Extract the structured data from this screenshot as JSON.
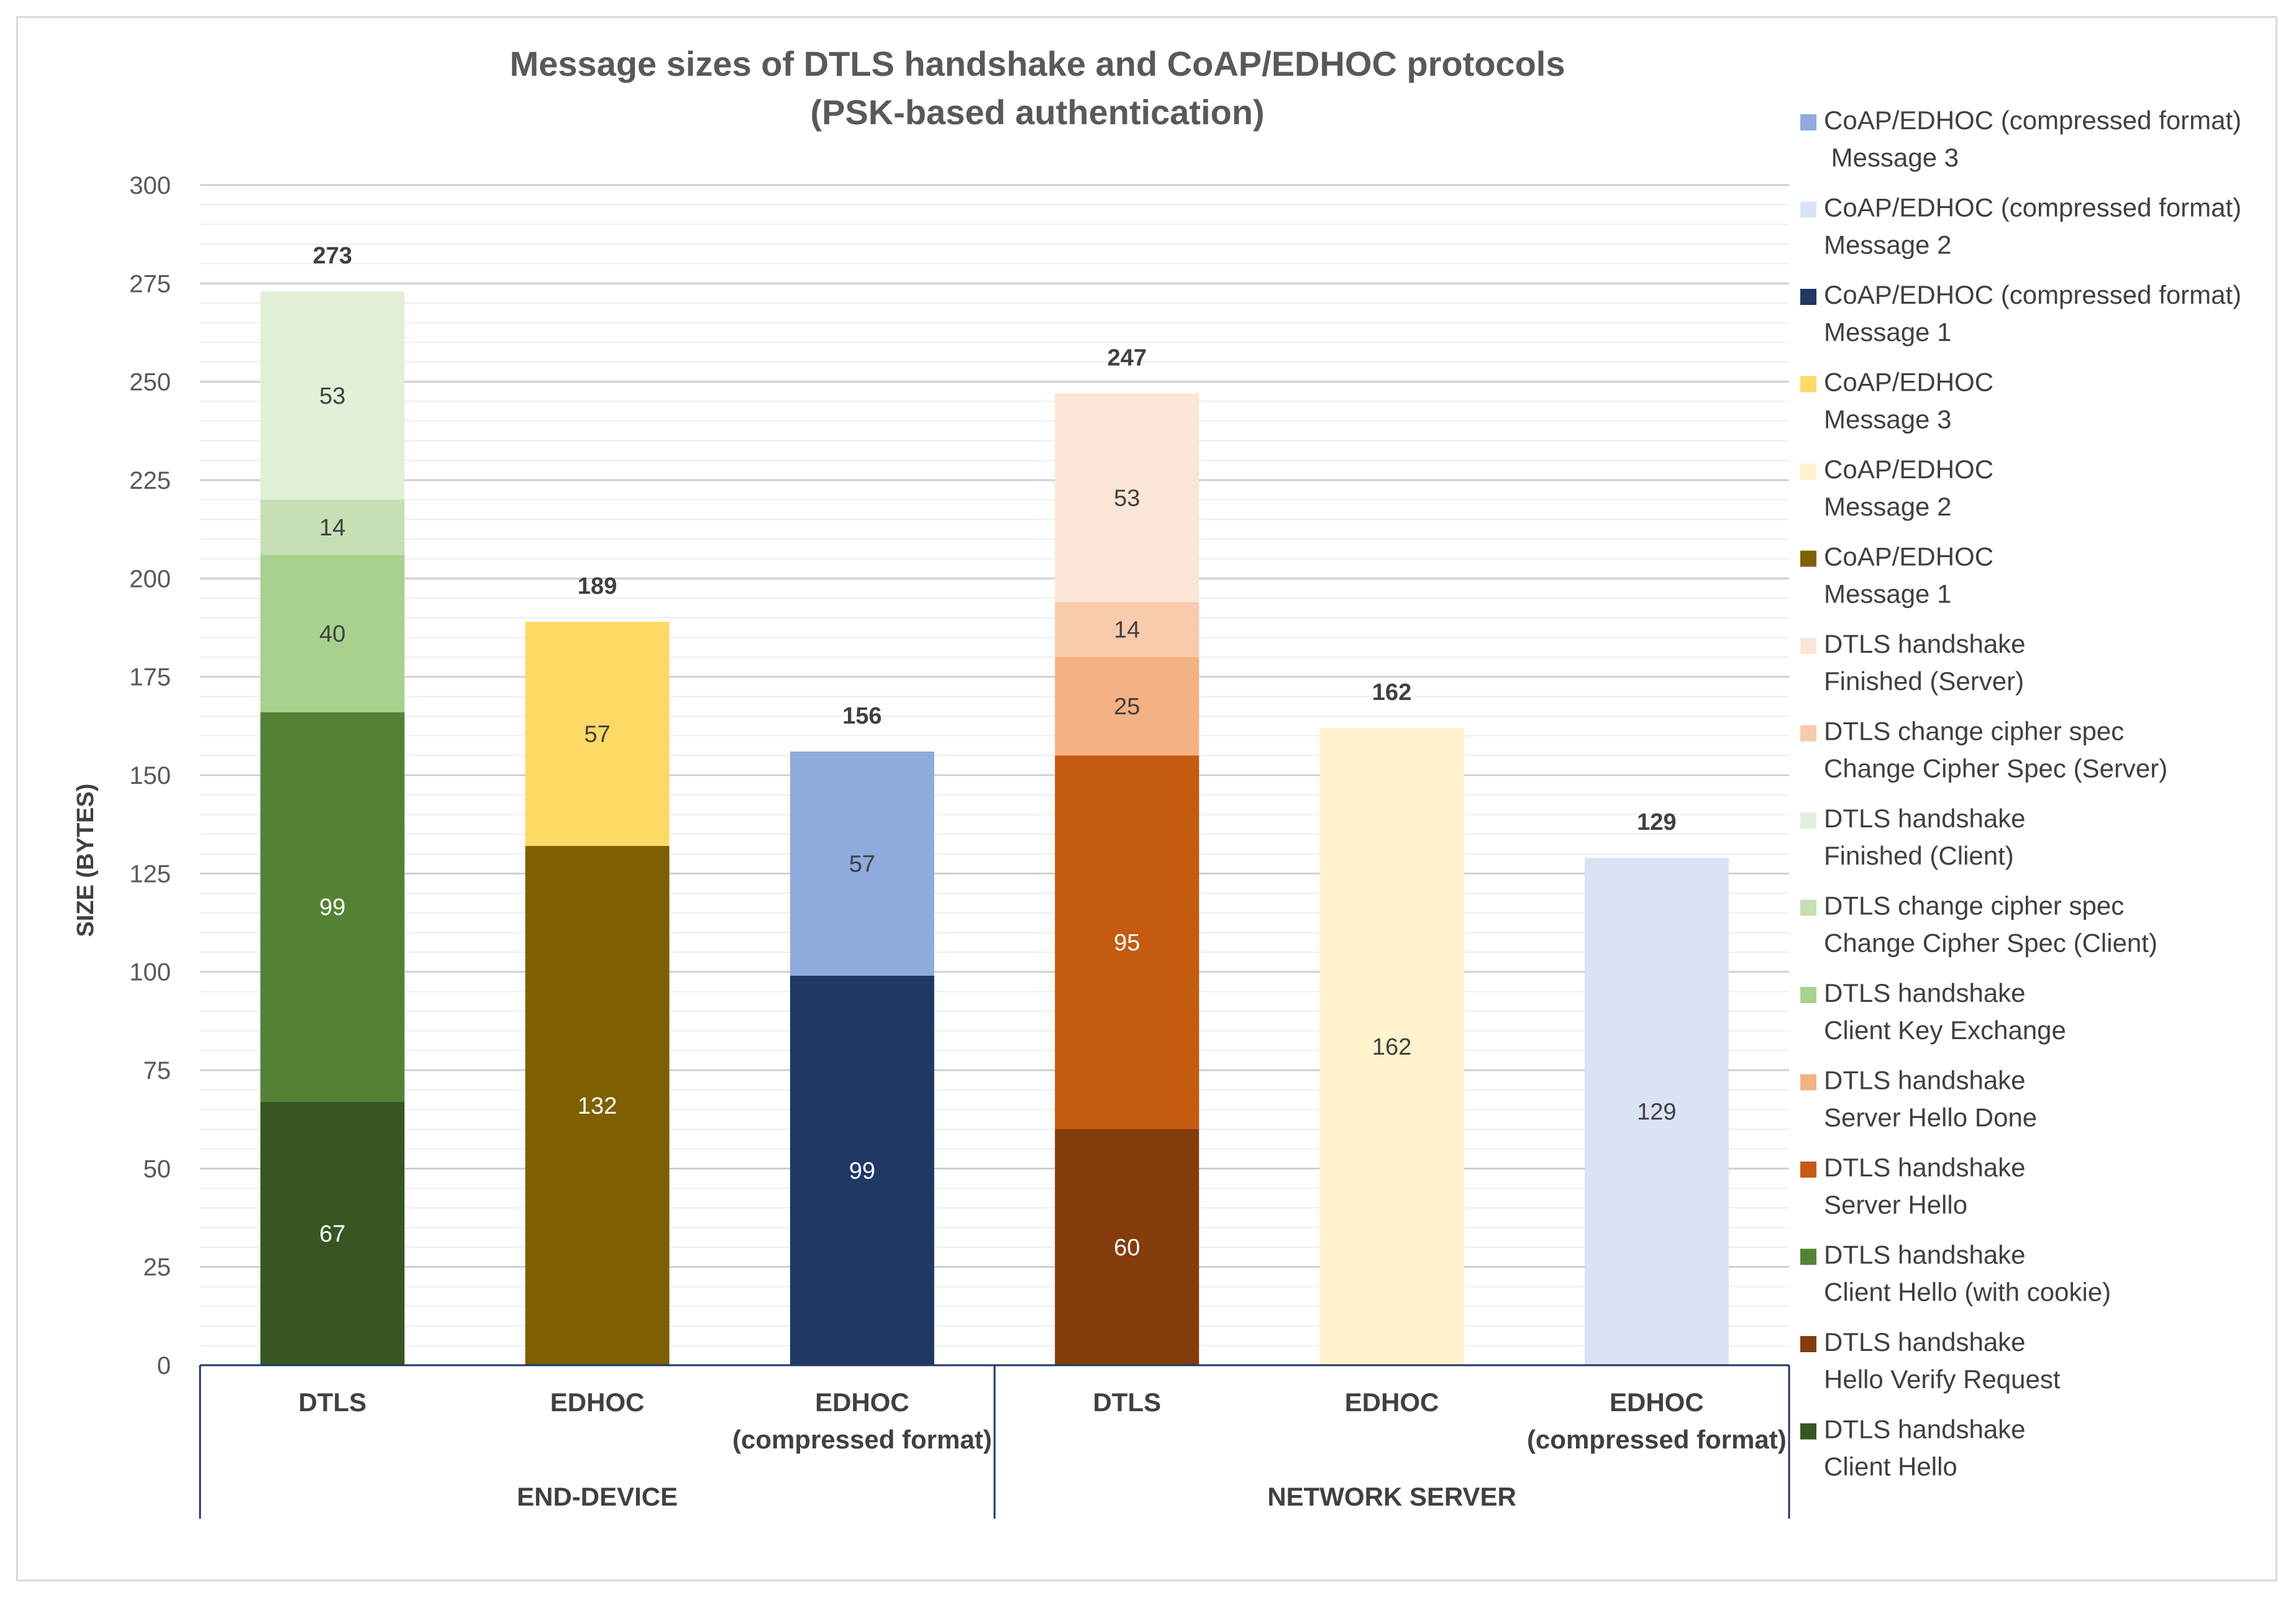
{
  "chart_data": {
    "type": "bar",
    "stacked": true,
    "title": "Message sizes of DTLS handshake and CoAP/EDHOC protocols",
    "subtitle": "(PSK-based authentication)",
    "ylabel": "SIZE (BYTES)",
    "ylim": [
      0,
      300
    ],
    "yticks": [
      0,
      25,
      50,
      75,
      100,
      125,
      150,
      175,
      200,
      225,
      250,
      275,
      300
    ],
    "groups": [
      {
        "name": "END-DEVICE",
        "categories": [
          "DTLS",
          "EDHOC",
          "EDHOC (compressed format)"
        ]
      },
      {
        "name": "NETWORK SERVER",
        "categories": [
          "DTLS",
          "EDHOC",
          "EDHOC (compressed format)"
        ]
      }
    ],
    "bars": [
      {
        "line1": "DTLS",
        "line2": "",
        "total": 273,
        "segments": [
          {
            "series": "DTLS handshake Client Hello",
            "value": 67
          },
          {
            "series": "DTLS handshake Client Hello (with cookie)",
            "value": 99
          },
          {
            "series": "DTLS handshake Client Key Exchange",
            "value": 40
          },
          {
            "series": "DTLS change cipher spec Change Cipher Spec (Client)",
            "value": 14
          },
          {
            "series": "DTLS handshake Finished (Client)",
            "value": 53
          }
        ]
      },
      {
        "line1": "EDHOC",
        "line2": "",
        "total": 189,
        "segments": [
          {
            "series": "CoAP/EDHOC Message 1",
            "value": 132
          },
          {
            "series": "CoAP/EDHOC Message 3",
            "value": 57
          }
        ]
      },
      {
        "line1": "EDHOC",
        "line2": "(compressed format)",
        "total": 156,
        "segments": [
          {
            "series": "CoAP/EDHOC (compressed format) Message 1",
            "value": 99
          },
          {
            "series": "CoAP/EDHOC (compressed format) Message 3",
            "value": 57
          }
        ]
      },
      {
        "line1": "DTLS",
        "line2": "",
        "total": 247,
        "segments": [
          {
            "series": "DTLS handshake Hello Verify Request",
            "value": 60
          },
          {
            "series": "DTLS handshake Server Hello",
            "value": 95
          },
          {
            "series": "DTLS handshake Server Hello Done",
            "value": 25
          },
          {
            "series": "DTLS change cipher spec Change Cipher Spec (Server)",
            "value": 14
          },
          {
            "series": "DTLS handshake Finished (Server)",
            "value": 53
          }
        ]
      },
      {
        "line1": "EDHOC",
        "line2": "",
        "total": 162,
        "segments": [
          {
            "series": "CoAP/EDHOC Message 2",
            "value": 162
          }
        ]
      },
      {
        "line1": "EDHOC",
        "line2": "(compressed format)",
        "total": 129,
        "segments": [
          {
            "series": "CoAP/EDHOC (compressed format) Message 2",
            "value": 129
          }
        ]
      }
    ],
    "legend": [
      {
        "line1": "CoAP/EDHOC  (compressed format)",
        "line2": " Message 3",
        "color": "#8faadc"
      },
      {
        "line1": "CoAP/EDHOC  (compressed format)",
        "line2": "Message 2",
        "color": "#dae3f3"
      },
      {
        "line1": "CoAP/EDHOC  (compressed format)",
        "line2": "Message 1",
        "color": "#1f3864"
      },
      {
        "line1": "CoAP/EDHOC",
        "line2": "Message 3",
        "color": "#ffd966"
      },
      {
        "line1": "CoAP/EDHOC",
        "line2": "Message 2",
        "color": "#fff2cc"
      },
      {
        "line1": "CoAP/EDHOC",
        "line2": "Message 1",
        "color": "#7f6000"
      },
      {
        "line1": "DTLS handshake",
        "line2": "Finished (Server)",
        "color": "#fbe5d6"
      },
      {
        "line1": "DTLS change cipher spec",
        "line2": "Change Cipher Spec (Server)",
        "color": "#f8cbad"
      },
      {
        "line1": "DTLS handshake",
        "line2": "Finished (Client)",
        "color": "#e2f0d9"
      },
      {
        "line1": "DTLS change cipher spec",
        "line2": "Change Cipher Spec (Client)",
        "color": "#c5e0b4"
      },
      {
        "line1": "DTLS handshake",
        "line2": "Client Key Exchange",
        "color": "#a9d18e"
      },
      {
        "line1": "DTLS handshake",
        "line2": "Server Hello Done",
        "color": "#f4b183"
      },
      {
        "line1": "DTLS handshake",
        "line2": "Server Hello",
        "color": "#c55a11"
      },
      {
        "line1": "DTLS handshake",
        "line2": "Client Hello (with cookie)",
        "color": "#548235"
      },
      {
        "line1": "DTLS handshake",
        "line2": "Hello Verify Request",
        "color": "#843c0c"
      },
      {
        "line1": "DTLS handshake",
        "line2": "Client Hello",
        "color": "#375623"
      }
    ],
    "legend_position": "right",
    "grid": true
  }
}
